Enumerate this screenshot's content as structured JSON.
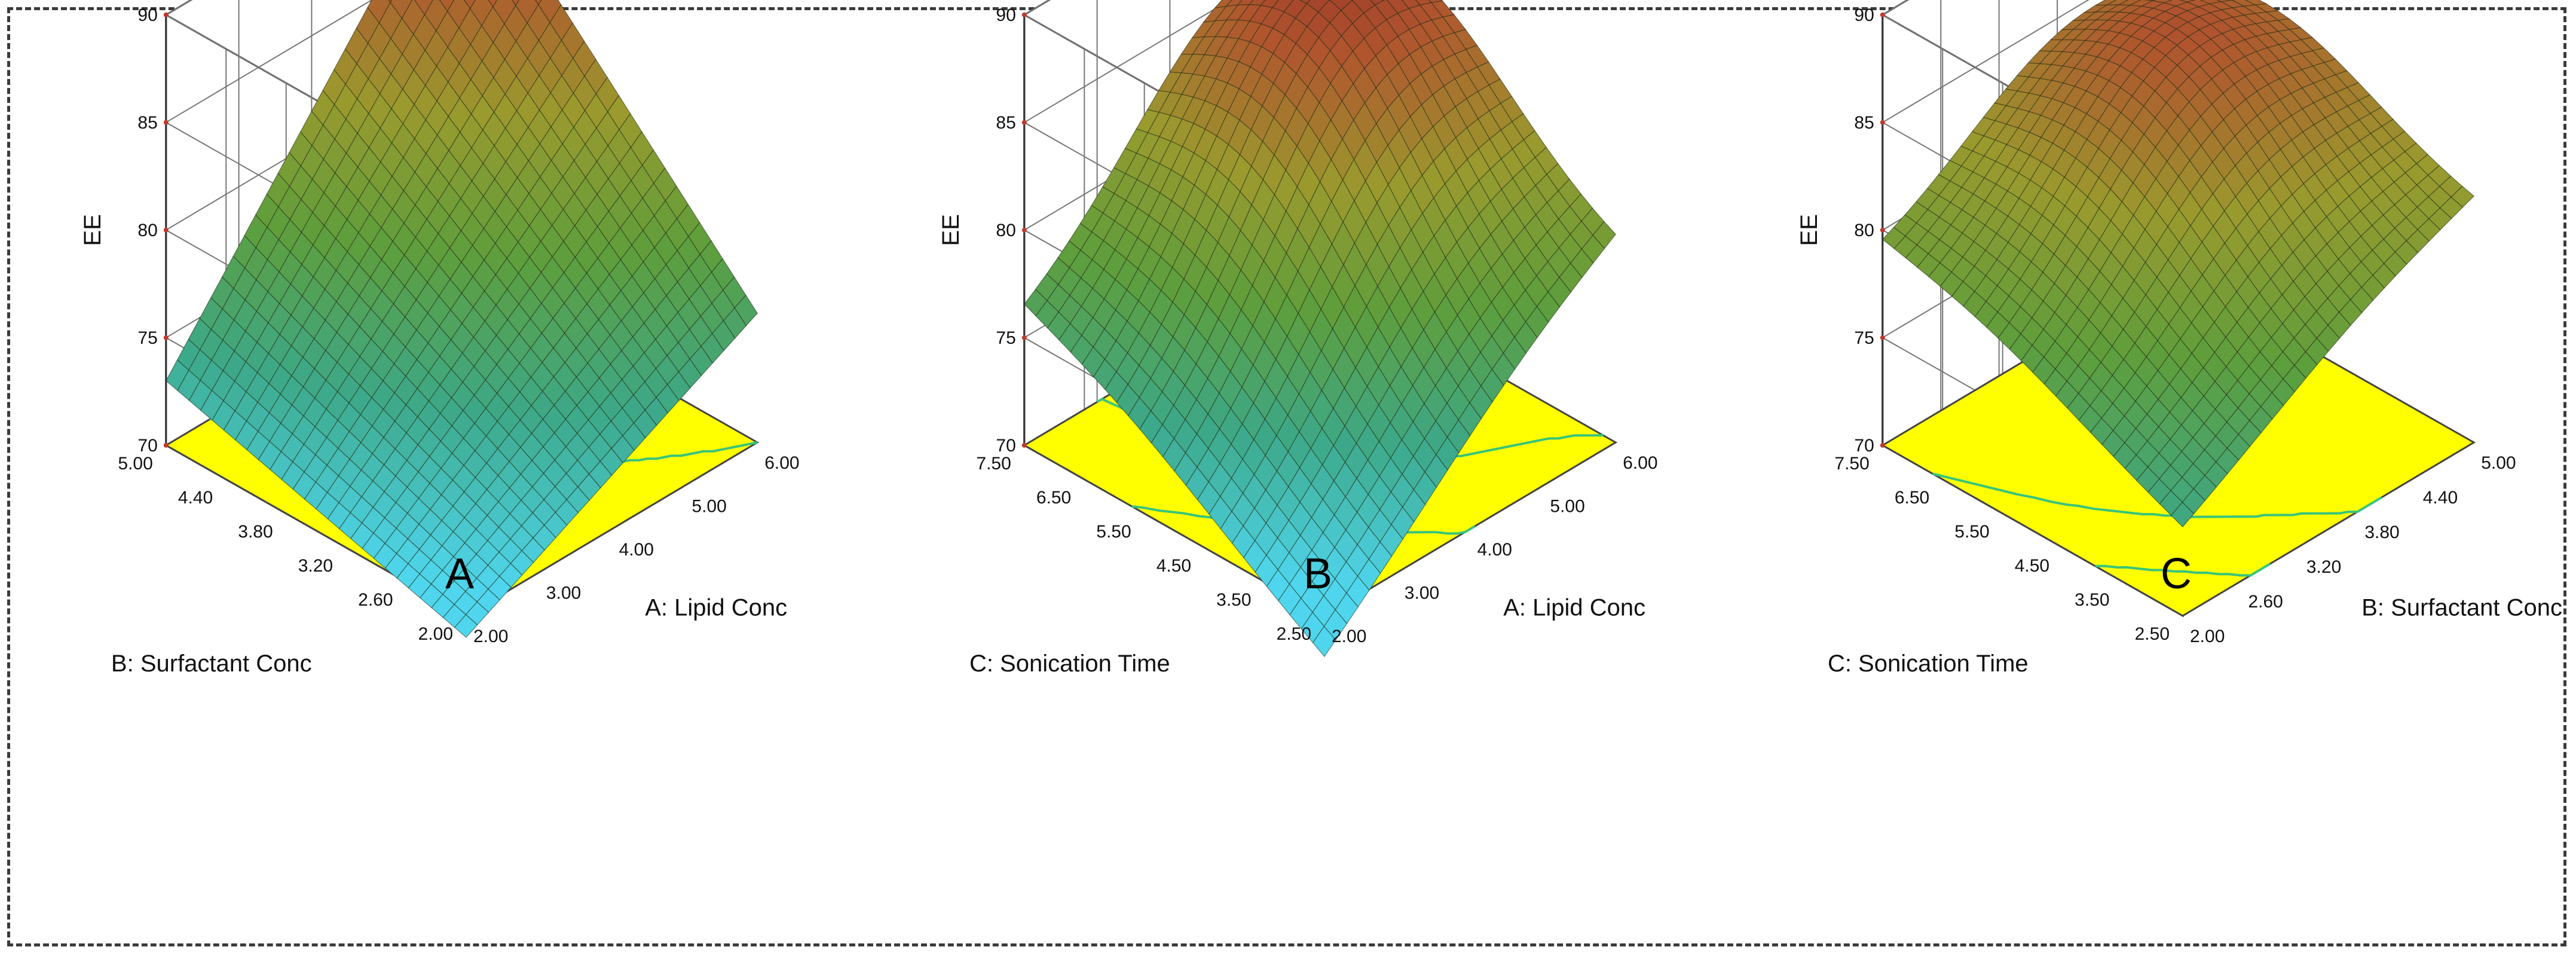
{
  "figure": {
    "background": "#ffffff",
    "floor_color": "#ffff00",
    "contour_color": "#39c47a",
    "high_contour_color": "#d9532b",
    "surface_colormap": [
      "#4fd6ee",
      "#3da888",
      "#5e9e3c",
      "#9a9a2e",
      "#b0552e",
      "#8a1f22"
    ],
    "panel_letter_color": "#000000"
  },
  "chart_data": [
    {
      "type": "surface3d",
      "panel_label": "A",
      "zlabel": "EE",
      "xlabel": "A: Lipid  Conc",
      "ylabel": "B: Surfactant  Conc",
      "x_ticks": [
        "2.00",
        "3.00",
        "4.00",
        "5.00",
        "6.00"
      ],
      "y_ticks": [
        "2.00",
        "2.60",
        "3.20",
        "3.80",
        "4.40",
        "5.00"
      ],
      "z_ticks": [
        "70",
        "75",
        "80",
        "85",
        "90"
      ],
      "xlim": [
        2,
        6
      ],
      "ylim": [
        2,
        5
      ],
      "zlim": [
        70,
        90
      ],
      "corners": {
        "x_low_y_low": 69,
        "x_high_y_low": 76,
        "x_low_y_high": 73,
        "x_high_y_high": 90
      },
      "peak": null,
      "floor_contours": [
        {
          "value": 76,
          "color": "#39c47a"
        },
        {
          "value": 84,
          "color": "#d9532b"
        }
      ]
    },
    {
      "type": "surface3d",
      "panel_label": "B",
      "zlabel": "EE",
      "xlabel": "A: Lipid  Conc",
      "ylabel": "C: Sonication Time",
      "x_ticks": [
        "2.00",
        "3.00",
        "4.00",
        "5.00",
        "6.00"
      ],
      "y_ticks": [
        "2.50",
        "3.50",
        "4.50",
        "5.50",
        "6.50",
        "7.50"
      ],
      "z_ticks": [
        "70",
        "75",
        "80",
        "85",
        "90"
      ],
      "xlim": [
        2,
        6
      ],
      "ylim": [
        2.5,
        7.5
      ],
      "zlim": [
        70,
        90
      ],
      "corners": {
        "x_low_y_low": 68,
        "x_high_y_low": 79,
        "x_low_y_high": 76,
        "x_high_y_high": 82
      },
      "peak": {
        "x": 4.8,
        "y": 5.9,
        "z": 87
      },
      "floor_contours": [
        {
          "value": 74,
          "color": "#39c47a"
        },
        {
          "value": 80,
          "color": "#39c47a"
        }
      ]
    },
    {
      "type": "surface3d",
      "panel_label": "C",
      "zlabel": "EE",
      "xlabel": "B: Surfactant  Conc",
      "ylabel": "C: Sonication Time",
      "x_ticks": [
        "2.00",
        "2.60",
        "3.20",
        "3.80",
        "4.40",
        "5.00"
      ],
      "y_ticks": [
        "2.50",
        "3.50",
        "4.50",
        "5.50",
        "6.50",
        "7.50"
      ],
      "z_ticks": [
        "70",
        "75",
        "80",
        "85",
        "90"
      ],
      "xlim": [
        2,
        5
      ],
      "ylim": [
        2.5,
        7.5
      ],
      "zlim": [
        70,
        90
      ],
      "corners": {
        "x_low_y_low": 74,
        "x_high_y_low": 81,
        "x_low_y_high": 79,
        "x_high_y_high": 82
      },
      "peak": {
        "x": 3.9,
        "y": 5.8,
        "z": 86
      },
      "floor_contours": [
        {
          "value": 76,
          "color": "#39c47a"
        },
        {
          "value": 79,
          "color": "#39c47a"
        }
      ]
    }
  ]
}
